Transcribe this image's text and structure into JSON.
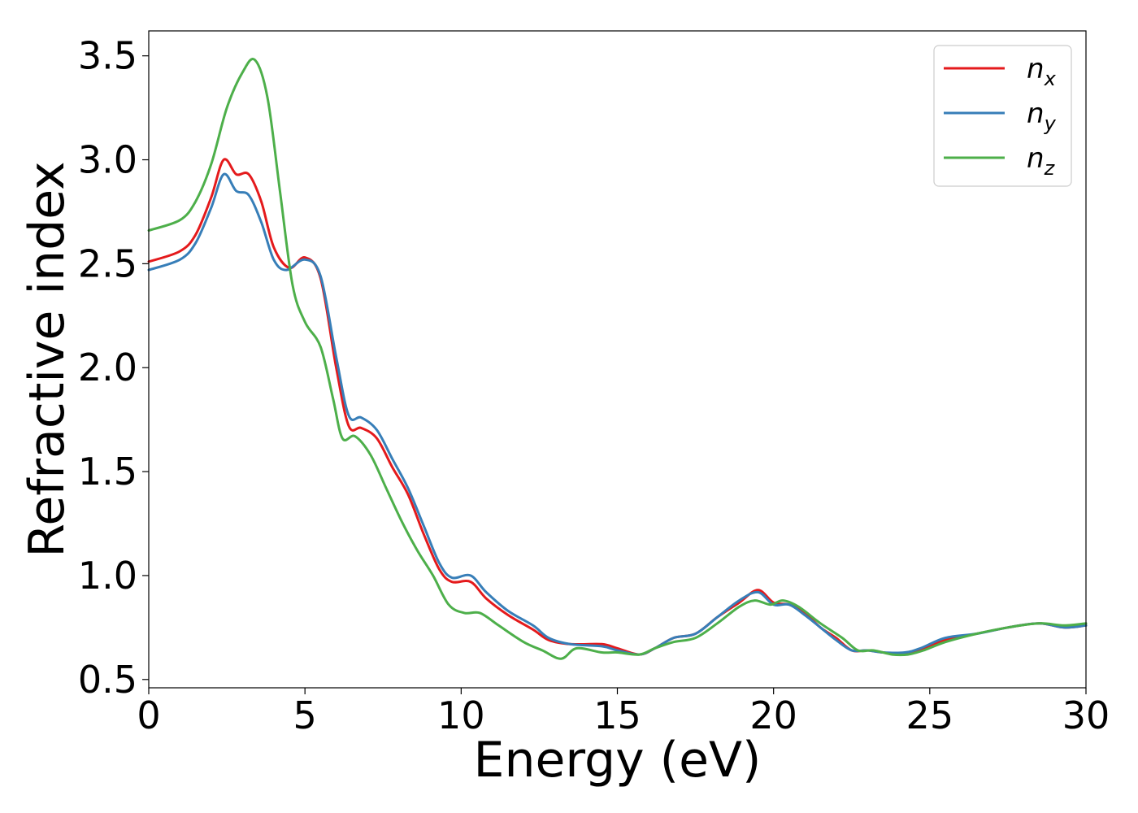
{
  "chart_data": {
    "type": "line",
    "title": "",
    "xlabel": "Energy (eV)",
    "ylabel": "Refractive index",
    "xlim": [
      0,
      30
    ],
    "ylim": [
      0.46,
      3.62
    ],
    "xticks": [
      0,
      5,
      10,
      15,
      20,
      25,
      30
    ],
    "xtick_labels": [
      "0",
      "5",
      "10",
      "15",
      "20",
      "25",
      "30"
    ],
    "yticks": [
      0.5,
      1.0,
      1.5,
      2.0,
      2.5,
      3.0,
      3.5
    ],
    "ytick_labels": [
      "0.5",
      "1.0",
      "1.5",
      "2.0",
      "2.5",
      "3.0",
      "3.5"
    ],
    "grid": false,
    "legend_position": "top-right",
    "series": [
      {
        "name": "n_x",
        "legend_base": "n",
        "legend_sub": "x",
        "color": "#e41a1c",
        "points": [
          [
            0,
            2.51
          ],
          [
            1,
            2.56
          ],
          [
            1.5,
            2.64
          ],
          [
            2,
            2.82
          ],
          [
            2.4,
            3.0
          ],
          [
            2.8,
            2.93
          ],
          [
            3.2,
            2.93
          ],
          [
            3.6,
            2.8
          ],
          [
            4,
            2.58
          ],
          [
            4.5,
            2.48
          ],
          [
            5,
            2.53
          ],
          [
            5.5,
            2.43
          ],
          [
            6,
            2.0
          ],
          [
            6.4,
            1.72
          ],
          [
            6.8,
            1.71
          ],
          [
            7.3,
            1.66
          ],
          [
            7.8,
            1.52
          ],
          [
            8.3,
            1.39
          ],
          [
            8.8,
            1.2
          ],
          [
            9.3,
            1.03
          ],
          [
            9.7,
            0.97
          ],
          [
            10.3,
            0.97
          ],
          [
            10.8,
            0.89
          ],
          [
            11.5,
            0.81
          ],
          [
            12.3,
            0.74
          ],
          [
            12.8,
            0.69
          ],
          [
            13.5,
            0.67
          ],
          [
            14.5,
            0.67
          ],
          [
            15,
            0.65
          ],
          [
            15.7,
            0.62
          ],
          [
            16.2,
            0.65
          ],
          [
            16.8,
            0.7
          ],
          [
            17.5,
            0.72
          ],
          [
            18.2,
            0.8
          ],
          [
            18.9,
            0.87
          ],
          [
            19.5,
            0.93
          ],
          [
            20,
            0.87
          ],
          [
            20.5,
            0.86
          ],
          [
            21,
            0.82
          ],
          [
            21.5,
            0.75
          ],
          [
            22,
            0.7
          ],
          [
            22.5,
            0.64
          ],
          [
            23,
            0.64
          ],
          [
            23.5,
            0.63
          ],
          [
            24.2,
            0.62
          ],
          [
            24.7,
            0.64
          ],
          [
            25.5,
            0.69
          ],
          [
            26.5,
            0.72
          ],
          [
            27.5,
            0.75
          ],
          [
            28.5,
            0.77
          ],
          [
            29.3,
            0.75
          ],
          [
            30,
            0.76
          ]
        ]
      },
      {
        "name": "n_y",
        "legend_base": "n",
        "legend_sub": "y",
        "color": "#377eb8",
        "points": [
          [
            0,
            2.47
          ],
          [
            1,
            2.52
          ],
          [
            1.5,
            2.6
          ],
          [
            2,
            2.77
          ],
          [
            2.4,
            2.93
          ],
          [
            2.8,
            2.85
          ],
          [
            3.2,
            2.83
          ],
          [
            3.6,
            2.7
          ],
          [
            4,
            2.52
          ],
          [
            4.4,
            2.47
          ],
          [
            5,
            2.52
          ],
          [
            5.5,
            2.44
          ],
          [
            6,
            2.05
          ],
          [
            6.4,
            1.77
          ],
          [
            6.8,
            1.76
          ],
          [
            7.3,
            1.7
          ],
          [
            7.8,
            1.56
          ],
          [
            8.3,
            1.42
          ],
          [
            8.8,
            1.24
          ],
          [
            9.3,
            1.06
          ],
          [
            9.7,
            0.99
          ],
          [
            10.3,
            1.0
          ],
          [
            10.8,
            0.92
          ],
          [
            11.5,
            0.83
          ],
          [
            12.3,
            0.76
          ],
          [
            12.8,
            0.7
          ],
          [
            13.5,
            0.67
          ],
          [
            14.5,
            0.66
          ],
          [
            15,
            0.64
          ],
          [
            15.7,
            0.62
          ],
          [
            16.2,
            0.65
          ],
          [
            16.8,
            0.7
          ],
          [
            17.5,
            0.72
          ],
          [
            18.2,
            0.8
          ],
          [
            18.9,
            0.88
          ],
          [
            19.5,
            0.92
          ],
          [
            20,
            0.86
          ],
          [
            20.5,
            0.86
          ],
          [
            21,
            0.81
          ],
          [
            21.5,
            0.75
          ],
          [
            22,
            0.69
          ],
          [
            22.5,
            0.64
          ],
          [
            23,
            0.64
          ],
          [
            23.5,
            0.63
          ],
          [
            24.2,
            0.63
          ],
          [
            24.7,
            0.65
          ],
          [
            25.5,
            0.7
          ],
          [
            26.5,
            0.72
          ],
          [
            27.5,
            0.75
          ],
          [
            28.5,
            0.77
          ],
          [
            29.3,
            0.75
          ],
          [
            30,
            0.76
          ]
        ]
      },
      {
        "name": "n_z",
        "legend_base": "n",
        "legend_sub": "z",
        "color": "#4daf4a",
        "points": [
          [
            0,
            2.66
          ],
          [
            1,
            2.71
          ],
          [
            1.5,
            2.8
          ],
          [
            2,
            2.98
          ],
          [
            2.5,
            3.25
          ],
          [
            3,
            3.42
          ],
          [
            3.4,
            3.48
          ],
          [
            3.8,
            3.3
          ],
          [
            4.2,
            2.85
          ],
          [
            4.6,
            2.4
          ],
          [
            5,
            2.22
          ],
          [
            5.5,
            2.1
          ],
          [
            5.9,
            1.85
          ],
          [
            6.2,
            1.66
          ],
          [
            6.6,
            1.67
          ],
          [
            7.1,
            1.58
          ],
          [
            7.6,
            1.42
          ],
          [
            8.1,
            1.26
          ],
          [
            8.6,
            1.12
          ],
          [
            9.1,
            1.0
          ],
          [
            9.6,
            0.86
          ],
          [
            10.1,
            0.82
          ],
          [
            10.6,
            0.82
          ],
          [
            11.2,
            0.76
          ],
          [
            12,
            0.68
          ],
          [
            12.6,
            0.64
          ],
          [
            13.2,
            0.6
          ],
          [
            13.7,
            0.65
          ],
          [
            14.5,
            0.63
          ],
          [
            15,
            0.63
          ],
          [
            15.7,
            0.62
          ],
          [
            16.2,
            0.65
          ],
          [
            16.8,
            0.68
          ],
          [
            17.5,
            0.7
          ],
          [
            18.2,
            0.77
          ],
          [
            18.9,
            0.85
          ],
          [
            19.4,
            0.88
          ],
          [
            19.9,
            0.86
          ],
          [
            20.3,
            0.88
          ],
          [
            20.8,
            0.85
          ],
          [
            21.5,
            0.77
          ],
          [
            22.2,
            0.7
          ],
          [
            22.7,
            0.64
          ],
          [
            23.2,
            0.64
          ],
          [
            23.8,
            0.62
          ],
          [
            24.3,
            0.62
          ],
          [
            24.8,
            0.64
          ],
          [
            25.5,
            0.68
          ],
          [
            26.5,
            0.72
          ],
          [
            27.5,
            0.75
          ],
          [
            28.5,
            0.77
          ],
          [
            29.3,
            0.76
          ],
          [
            30,
            0.77
          ]
        ]
      }
    ]
  }
}
